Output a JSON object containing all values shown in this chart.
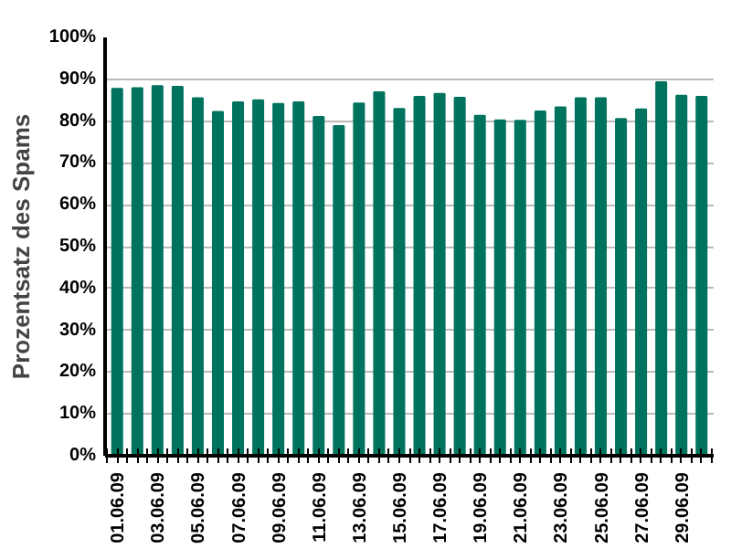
{
  "chart_data": {
    "type": "bar",
    "ylabel": "Prozentsatz des Spams",
    "categories": [
      "01.06.09",
      null,
      "03.06.09",
      null,
      "05.06.09",
      null,
      "07.06.09",
      null,
      "09.06.09",
      null,
      "11.06.09",
      null,
      "13.06.09",
      null,
      "15.06.09",
      null,
      "17.06.09",
      null,
      "19.06.09",
      null,
      "21.06.09",
      null,
      "23.06.09",
      null,
      "25.06.09",
      null,
      "27.06.09",
      null,
      "29.06.09",
      null
    ],
    "values": [
      87.7,
      87.9,
      88.4,
      88.2,
      85.5,
      82.2,
      84.5,
      85.0,
      84.1,
      84.5,
      81.0,
      78.8,
      84.2,
      86.9,
      82.9,
      85.8,
      86.5,
      85.6,
      81.3,
      80.2,
      80.1,
      82.3,
      83.3,
      85.5,
      85.5,
      80.5,
      82.8,
      89.3,
      86.1,
      85.8
    ],
    "color": "#00735f",
    "ylim": [
      0,
      100
    ],
    "yticks": [
      {
        "value": 0,
        "label": "0%"
      },
      {
        "value": 10,
        "label": "10%"
      },
      {
        "value": 20,
        "label": "20%"
      },
      {
        "value": 30,
        "label": "30%"
      },
      {
        "value": 40,
        "label": "40%"
      },
      {
        "value": 50,
        "label": "50%"
      },
      {
        "value": 60,
        "label": "60%"
      },
      {
        "value": 70,
        "label": "70%"
      },
      {
        "value": 80,
        "label": "80%"
      },
      {
        "value": 90,
        "label": "90%"
      },
      {
        "value": 100,
        "label": "100%"
      }
    ],
    "grid": "y"
  }
}
